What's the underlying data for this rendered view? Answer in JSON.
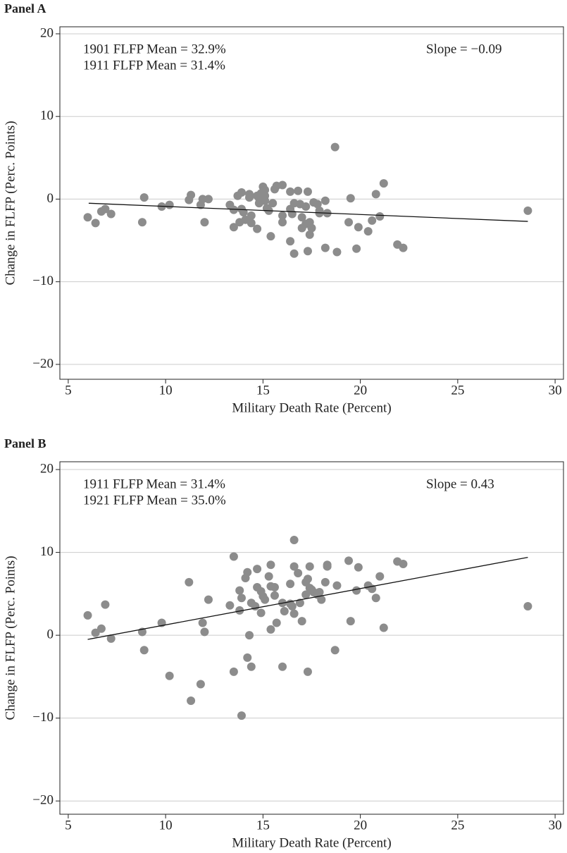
{
  "chart_data": [
    {
      "type": "scatter",
      "panel": "Panel A",
      "xlabel": "Military Death Rate (Percent)",
      "ylabel": "Change in FLFP (Perc. Points)",
      "annotations": [
        "1901 FLFP Mean = 32.9%",
        "1911 FLFP Mean = 31.4%",
        "Slope = −0.09"
      ],
      "color": "#8c8c8c",
      "grid": true,
      "xlim": [
        4.57,
        30.43
      ],
      "ylim": [
        -21.8,
        20.85
      ],
      "xticks": [
        5,
        10,
        15,
        20,
        25,
        30
      ],
      "yticks": [
        {
          "value": -20,
          "label": "−20"
        },
        {
          "value": -10,
          "label": "−10"
        },
        0,
        10,
        20
      ],
      "x": [
        6.0,
        6.4,
        6.7,
        6.9,
        7.2,
        8.8,
        8.9,
        9.8,
        10.2,
        11.2,
        11.3,
        11.8,
        11.9,
        12.0,
        12.2,
        13.3,
        13.5,
        13.5,
        13.7,
        13.8,
        13.9,
        13.9,
        14.0,
        14.1,
        14.3,
        14.3,
        14.4,
        14.4,
        14.7,
        14.7,
        14.8,
        14.8,
        14.9,
        15.0,
        15.1,
        15.1,
        15.1,
        15.2,
        15.3,
        15.4,
        15.5,
        15.6,
        15.7,
        16.0,
        16.0,
        16.0,
        16.4,
        16.4,
        16.4,
        16.5,
        16.6,
        16.6,
        16.8,
        16.9,
        17.0,
        17.0,
        17.2,
        17.2,
        17.3,
        17.3,
        17.4,
        17.4,
        17.5,
        17.6,
        17.8,
        17.9,
        17.9,
        18.2,
        18.2,
        18.3,
        18.7,
        18.8,
        19.4,
        19.5,
        19.8,
        19.9,
        20.4,
        20.6,
        20.8,
        21.0,
        21.2,
        21.9,
        22.2,
        28.6
      ],
      "values": [
        -2.2,
        -2.9,
        -1.5,
        -1.2,
        -1.8,
        -2.8,
        0.2,
        -0.9,
        -0.7,
        -0.1,
        0.5,
        -0.7,
        0,
        -2.8,
        0,
        -0.7,
        -1.3,
        -3.4,
        0.4,
        -2.8,
        0.8,
        -1.2,
        -1.6,
        -2.5,
        0.6,
        0.2,
        -2.9,
        -2.0,
        -3.6,
        0.4,
        -0.5,
        0.1,
        0.7,
        1.5,
        1.1,
        -0.2,
        0.4,
        -1.1,
        -1.4,
        -4.5,
        -0.5,
        1.2,
        1.6,
        1.7,
        -2.0,
        -2.8,
        0.9,
        -5.1,
        -1.2,
        -1.8,
        -6.6,
        -0.5,
        1.0,
        -0.6,
        -2.2,
        -3.5,
        -0.9,
        -3.0,
        -6.3,
        0.9,
        -4.3,
        -2.8,
        -3.5,
        -0.4,
        -0.6,
        -1.4,
        -1.7,
        -0.2,
        -5.9,
        -1.7,
        6.3,
        -6.4,
        -2.8,
        0.1,
        -6.0,
        -3.4,
        -3.9,
        -2.6,
        0.6,
        -2.1,
        1.9,
        -5.5,
        -5.9,
        -1.4
      ],
      "fit_line": {
        "x": [
          6.05,
          28.6
        ],
        "values": [
          -0.5,
          -2.7
        ]
      }
    },
    {
      "type": "scatter",
      "panel": "Panel B",
      "xlabel": "Military Death Rate (Percent)",
      "ylabel": "Change in FLFP (Perc. Points)",
      "annotations": [
        "1911 FLFP Mean = 31.4%",
        "1921 FLFP Mean = 35.0%",
        "Slope = 0.43"
      ],
      "color": "#8c8c8c",
      "grid": true,
      "xlim": [
        4.57,
        30.43
      ],
      "ylim": [
        -21.6,
        20.94
      ],
      "xticks": [
        5,
        10,
        15,
        20,
        25,
        30
      ],
      "yticks": [
        {
          "value": -20,
          "label": "−20"
        },
        {
          "value": -10,
          "label": "−10"
        },
        0,
        10,
        20
      ],
      "x": [
        6.0,
        6.4,
        6.7,
        6.9,
        7.2,
        8.8,
        8.9,
        9.8,
        10.2,
        11.2,
        11.3,
        11.8,
        11.9,
        12.0,
        12.2,
        13.3,
        13.5,
        13.5,
        13.8,
        13.8,
        13.9,
        13.9,
        14.1,
        14.2,
        14.2,
        14.3,
        14.4,
        14.4,
        14.6,
        14.7,
        14.7,
        14.9,
        14.9,
        15.0,
        15.1,
        15.3,
        15.4,
        15.4,
        15.4,
        15.6,
        15.6,
        15.7,
        16.0,
        16.0,
        16.1,
        16.4,
        16.4,
        16.5,
        16.6,
        16.6,
        16.6,
        16.8,
        16.9,
        17.0,
        17.2,
        17.2,
        17.3,
        17.3,
        17.4,
        17.4,
        17.5,
        17.6,
        17.8,
        17.9,
        18.0,
        18.2,
        18.3,
        18.3,
        18.7,
        18.8,
        19.4,
        19.5,
        19.8,
        19.9,
        20.4,
        20.6,
        20.8,
        21.0,
        21.2,
        21.9,
        22.2,
        28.6
      ],
      "values": [
        2.4,
        0.3,
        0.8,
        3.7,
        -0.4,
        0.4,
        -1.8,
        1.5,
        -4.9,
        6.4,
        -7.9,
        -5.9,
        1.5,
        0.4,
        4.3,
        3.6,
        -4.4,
        9.5,
        3.0,
        5.4,
        -9.7,
        4.5,
        6.9,
        7.6,
        -2.7,
        0.0,
        3.9,
        -3.8,
        3.5,
        8.0,
        5.8,
        5.3,
        2.7,
        4.7,
        4.3,
        7.1,
        0.7,
        8.5,
        5.9,
        5.8,
        4.8,
        1.5,
        3.9,
        -3.8,
        2.9,
        6.2,
        3.8,
        3.5,
        8.3,
        11.5,
        2.6,
        7.5,
        3.9,
        1.7,
        4.9,
        6.4,
        -4.4,
        6.8,
        8.3,
        5.7,
        5.5,
        5.2,
        4.9,
        5.2,
        4.3,
        6.4,
        8.3,
        8.5,
        -1.8,
        6.0,
        9.0,
        1.7,
        5.4,
        8.2,
        6.0,
        5.6,
        4.5,
        7.1,
        0.9,
        8.9,
        8.6,
        3.5
      ],
      "fit_line": {
        "x": [
          6.0,
          28.6
        ],
        "values": [
          -0.5,
          9.4
        ]
      }
    }
  ]
}
